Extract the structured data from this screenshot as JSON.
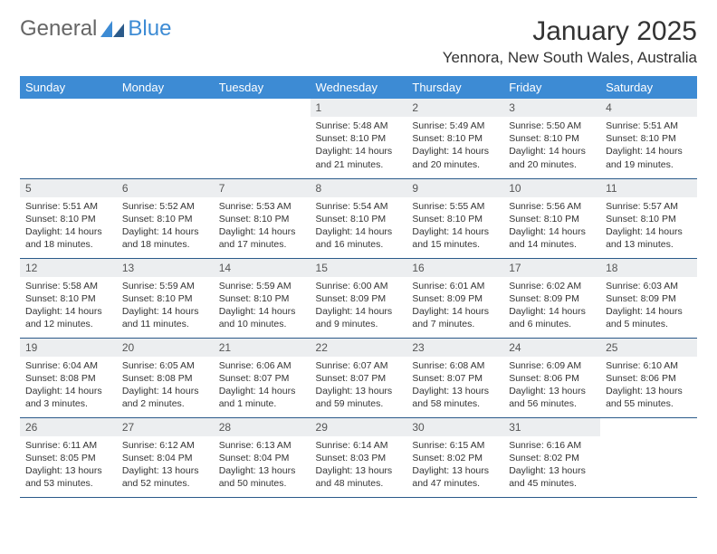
{
  "brand": {
    "part1": "General",
    "part2": "Blue"
  },
  "title": "January 2025",
  "location": "Yennora, New South Wales, Australia",
  "colors": {
    "header_bg": "#3d8bd4",
    "header_text": "#ffffff",
    "daynum_bg": "#eceef0",
    "daynum_text": "#555555",
    "border": "#2b5a8a",
    "logo_grey": "#666666",
    "logo_blue": "#3d8bd4"
  },
  "weekdays": [
    "Sunday",
    "Monday",
    "Tuesday",
    "Wednesday",
    "Thursday",
    "Friday",
    "Saturday"
  ],
  "weeks": [
    [
      null,
      null,
      null,
      {
        "n": "1",
        "sunrise": "5:48 AM",
        "sunset": "8:10 PM",
        "daylight": "14 hours and 21 minutes."
      },
      {
        "n": "2",
        "sunrise": "5:49 AM",
        "sunset": "8:10 PM",
        "daylight": "14 hours and 20 minutes."
      },
      {
        "n": "3",
        "sunrise": "5:50 AM",
        "sunset": "8:10 PM",
        "daylight": "14 hours and 20 minutes."
      },
      {
        "n": "4",
        "sunrise": "5:51 AM",
        "sunset": "8:10 PM",
        "daylight": "14 hours and 19 minutes."
      }
    ],
    [
      {
        "n": "5",
        "sunrise": "5:51 AM",
        "sunset": "8:10 PM",
        "daylight": "14 hours and 18 minutes."
      },
      {
        "n": "6",
        "sunrise": "5:52 AM",
        "sunset": "8:10 PM",
        "daylight": "14 hours and 18 minutes."
      },
      {
        "n": "7",
        "sunrise": "5:53 AM",
        "sunset": "8:10 PM",
        "daylight": "14 hours and 17 minutes."
      },
      {
        "n": "8",
        "sunrise": "5:54 AM",
        "sunset": "8:10 PM",
        "daylight": "14 hours and 16 minutes."
      },
      {
        "n": "9",
        "sunrise": "5:55 AM",
        "sunset": "8:10 PM",
        "daylight": "14 hours and 15 minutes."
      },
      {
        "n": "10",
        "sunrise": "5:56 AM",
        "sunset": "8:10 PM",
        "daylight": "14 hours and 14 minutes."
      },
      {
        "n": "11",
        "sunrise": "5:57 AM",
        "sunset": "8:10 PM",
        "daylight": "14 hours and 13 minutes."
      }
    ],
    [
      {
        "n": "12",
        "sunrise": "5:58 AM",
        "sunset": "8:10 PM",
        "daylight": "14 hours and 12 minutes."
      },
      {
        "n": "13",
        "sunrise": "5:59 AM",
        "sunset": "8:10 PM",
        "daylight": "14 hours and 11 minutes."
      },
      {
        "n": "14",
        "sunrise": "5:59 AM",
        "sunset": "8:10 PM",
        "daylight": "14 hours and 10 minutes."
      },
      {
        "n": "15",
        "sunrise": "6:00 AM",
        "sunset": "8:09 PM",
        "daylight": "14 hours and 9 minutes."
      },
      {
        "n": "16",
        "sunrise": "6:01 AM",
        "sunset": "8:09 PM",
        "daylight": "14 hours and 7 minutes."
      },
      {
        "n": "17",
        "sunrise": "6:02 AM",
        "sunset": "8:09 PM",
        "daylight": "14 hours and 6 minutes."
      },
      {
        "n": "18",
        "sunrise": "6:03 AM",
        "sunset": "8:09 PM",
        "daylight": "14 hours and 5 minutes."
      }
    ],
    [
      {
        "n": "19",
        "sunrise": "6:04 AM",
        "sunset": "8:08 PM",
        "daylight": "14 hours and 3 minutes."
      },
      {
        "n": "20",
        "sunrise": "6:05 AM",
        "sunset": "8:08 PM",
        "daylight": "14 hours and 2 minutes."
      },
      {
        "n": "21",
        "sunrise": "6:06 AM",
        "sunset": "8:07 PM",
        "daylight": "14 hours and 1 minute."
      },
      {
        "n": "22",
        "sunrise": "6:07 AM",
        "sunset": "8:07 PM",
        "daylight": "13 hours and 59 minutes."
      },
      {
        "n": "23",
        "sunrise": "6:08 AM",
        "sunset": "8:07 PM",
        "daylight": "13 hours and 58 minutes."
      },
      {
        "n": "24",
        "sunrise": "6:09 AM",
        "sunset": "8:06 PM",
        "daylight": "13 hours and 56 minutes."
      },
      {
        "n": "25",
        "sunrise": "6:10 AM",
        "sunset": "8:06 PM",
        "daylight": "13 hours and 55 minutes."
      }
    ],
    [
      {
        "n": "26",
        "sunrise": "6:11 AM",
        "sunset": "8:05 PM",
        "daylight": "13 hours and 53 minutes."
      },
      {
        "n": "27",
        "sunrise": "6:12 AM",
        "sunset": "8:04 PM",
        "daylight": "13 hours and 52 minutes."
      },
      {
        "n": "28",
        "sunrise": "6:13 AM",
        "sunset": "8:04 PM",
        "daylight": "13 hours and 50 minutes."
      },
      {
        "n": "29",
        "sunrise": "6:14 AM",
        "sunset": "8:03 PM",
        "daylight": "13 hours and 48 minutes."
      },
      {
        "n": "30",
        "sunrise": "6:15 AM",
        "sunset": "8:02 PM",
        "daylight": "13 hours and 47 minutes."
      },
      {
        "n": "31",
        "sunrise": "6:16 AM",
        "sunset": "8:02 PM",
        "daylight": "13 hours and 45 minutes."
      },
      null
    ]
  ],
  "labels": {
    "sunrise": "Sunrise:",
    "sunset": "Sunset:",
    "daylight": "Daylight:"
  }
}
